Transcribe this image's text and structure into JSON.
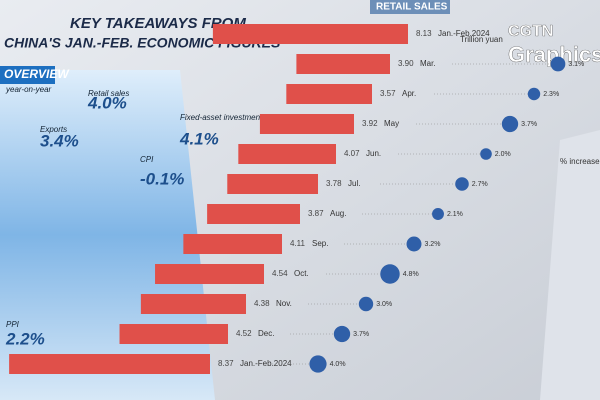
{
  "header": {
    "title_line1": "KEY TAKEAWAYS FROM",
    "title_line2": "CHINA'S JAN.-FEB. ECONOMIC FIGURES",
    "logo_line1": "CGTN",
    "logo_line2": "Graphics"
  },
  "overview": {
    "tab": "OVERVIEW",
    "note": "year-on-year",
    "items": [
      {
        "label": "Retail sales",
        "value": "4.0%"
      },
      {
        "label": "Exports",
        "value": "3.4%"
      },
      {
        "label": "Fixed-asset investment",
        "value": "4.1%"
      },
      {
        "label": "CPI",
        "value": "-0.1%"
      },
      {
        "label": "PPI",
        "value": "2.2%"
      }
    ]
  },
  "retail_sales": {
    "tab": "RETAIL SALES",
    "unit": "Trillion yuan",
    "rows": [
      {
        "value": "8.13",
        "period": "Jan.-Feb.2024"
      },
      {
        "value": "3.90",
        "period": "Mar.",
        "growth": "3.1%"
      },
      {
        "value": "3.57",
        "period": "Apr.",
        "growth": "2.3%"
      },
      {
        "value": "3.92",
        "period": "May",
        "growth": "3.7%"
      },
      {
        "value": "4.07",
        "period": "Jun.",
        "growth": "2.0%"
      },
      {
        "value": "3.78",
        "period": "Jul.",
        "growth": "2.7%"
      },
      {
        "value": "3.87",
        "period": "Aug.",
        "growth": "2.1%"
      },
      {
        "value": "4.11",
        "period": "Sep.",
        "growth": "3.2%"
      },
      {
        "value": "4.54",
        "period": "Oct.",
        "growth": "4.8%"
      },
      {
        "value": "4.38",
        "period": "Nov.",
        "growth": "3.0%"
      },
      {
        "value": "4.52",
        "period": "Dec.",
        "growth": "3.7%"
      },
      {
        "value": "8.37",
        "period": "Jan.-Feb.2024",
        "growth": "4.0%"
      }
    ]
  },
  "side_panel": {
    "label": "% increase"
  }
}
